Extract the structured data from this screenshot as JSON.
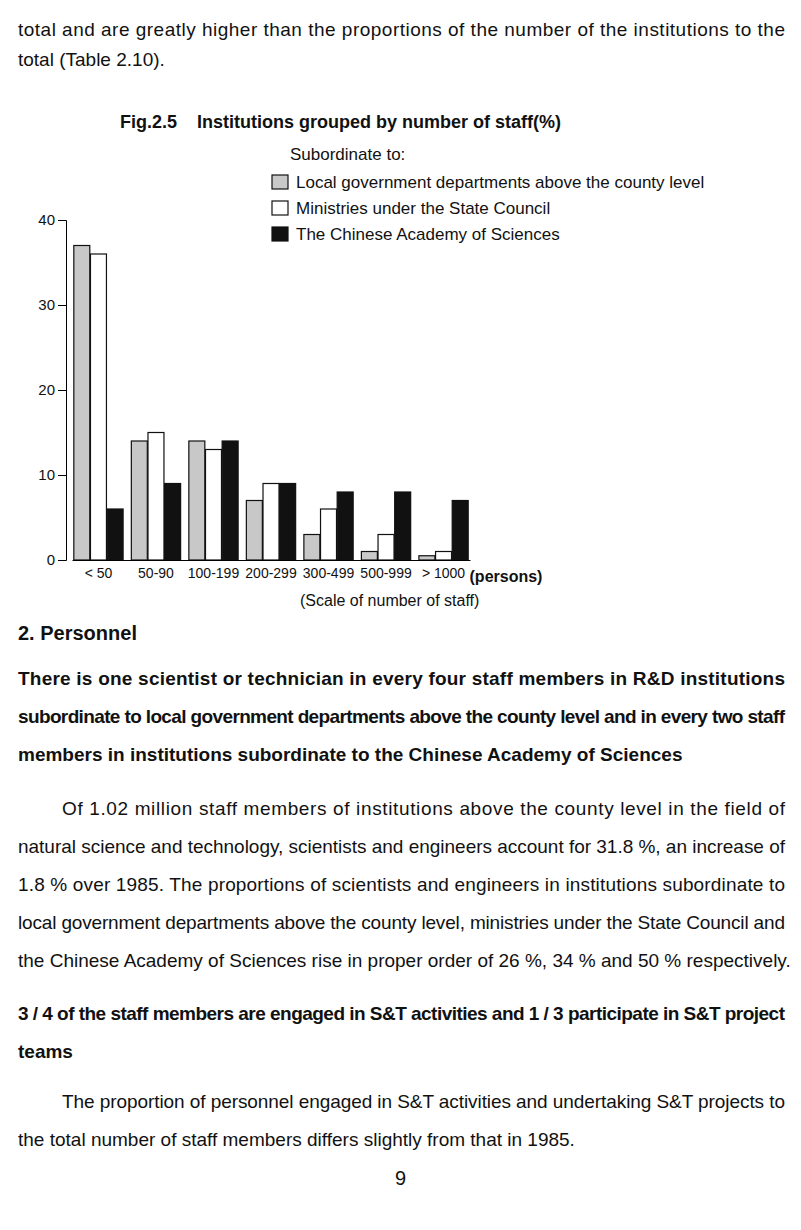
{
  "document": {
    "intro": [
      "total and are greatly higher than the proportions of the number of the institutions to the",
      "total (Table 2.10)."
    ],
    "heading": "2.  Personnel",
    "paragraphs": [
      [
        "There is one scientist or technician in every four staff members in R&D institutions",
        "subordinate to local government departments above the county level and in every two staff",
        "members in institutions subordinate to the Chinese Academy of Sciences"
      ],
      [
        "Of 1.02 million staff members of institutions above the county level in the field of",
        "natural science and technology, scientists and engineers account for 31.8 %, an increase of",
        "1.8 % over 1985. The proportions of scientists and engineers in institutions subordinate to",
        "local government departments above the county level, ministries under the State Council and",
        "the Chinese Academy of Sciences rise in proper order of 26 %, 34 % and 50 % respectively."
      ],
      [
        "3 / 4 of the staff members are engaged in S&T activities and 1 / 3 participate in S&T project",
        "teams"
      ],
      [
        "The proportion of personnel engaged in S&T activities and undertaking S&T projects to",
        "the total number of staff members differs slightly from that in 1985."
      ]
    ],
    "page_number": "9"
  },
  "chart_data": {
    "type": "bar",
    "title": "Fig.2.5    Institutions grouped by number of staff(%)",
    "legend_title": "Subordinate to:",
    "x_label": "(Scale of number of staff)",
    "annotations": [
      "(persons)"
    ],
    "categories": [
      "< 50",
      "50-90",
      "100-199",
      "200-299",
      "300-499",
      "500-999",
      "> 1000"
    ],
    "series": [
      {
        "name": "Local government departments above the county level",
        "color": "#c8c8c8",
        "values": [
          37,
          14,
          14,
          7,
          3,
          1,
          0.5
        ]
      },
      {
        "name": "Ministries under the State Council",
        "color": "#ffffff",
        "values": [
          36,
          15,
          13,
          9,
          6,
          3,
          1
        ]
      },
      {
        "name": "The Chinese Academy of Sciences",
        "color": "#111111",
        "values": [
          6,
          9,
          14,
          9,
          8,
          8,
          7
        ]
      }
    ],
    "ylim": [
      0,
      40
    ],
    "yticks": [
      0,
      10,
      20,
      30,
      40
    ],
    "legend": "top-right",
    "grid": false
  }
}
